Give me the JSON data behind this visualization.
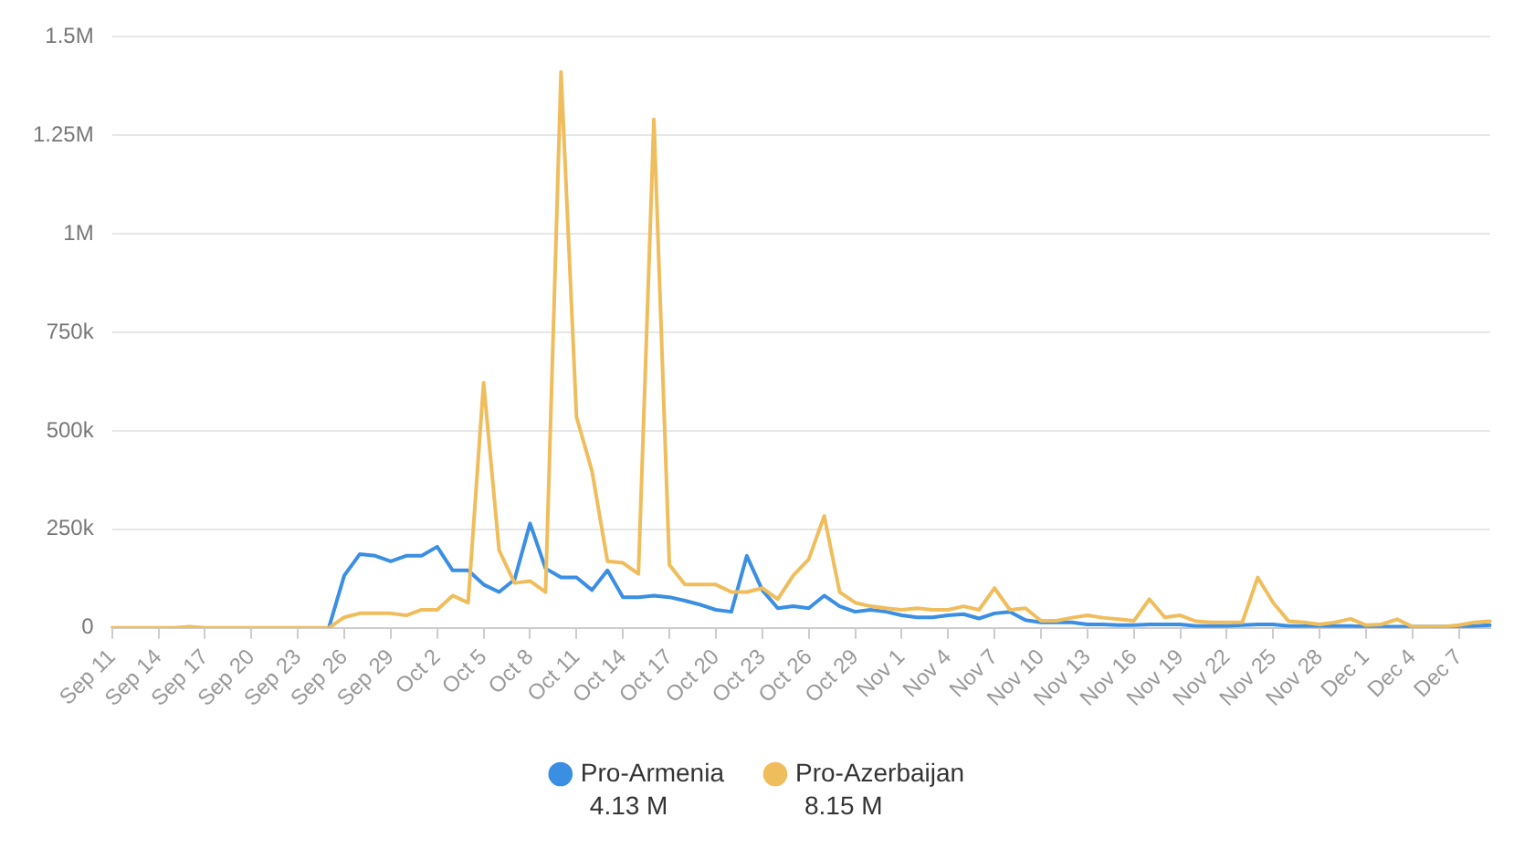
{
  "chart_data": {
    "type": "line",
    "categories": [
      "Sep 11",
      null,
      null,
      "Sep 14",
      null,
      null,
      "Sep 17",
      null,
      null,
      "Sep 20",
      null,
      null,
      "Sep 23",
      null,
      null,
      "Sep 26",
      null,
      null,
      "Sep 29",
      null,
      null,
      "Oct 2",
      null,
      null,
      "Oct 5",
      null,
      null,
      "Oct 8",
      null,
      null,
      "Oct 11",
      null,
      null,
      "Oct 14",
      null,
      null,
      "Oct 17",
      null,
      null,
      "Oct 20",
      null,
      null,
      "Oct 23",
      null,
      null,
      "Oct 26",
      null,
      null,
      "Oct 29",
      null,
      null,
      "Nov 1",
      null,
      null,
      "Nov 4",
      null,
      null,
      "Nov 7",
      null,
      null,
      "Nov 10",
      null,
      null,
      "Nov 13",
      null,
      null,
      "Nov 16",
      null,
      null,
      "Nov 19",
      null,
      null,
      "Nov 22",
      null,
      null,
      "Nov 25",
      null,
      null,
      "Nov 28",
      null,
      null,
      "Dec 1",
      null,
      null,
      "Dec 4",
      null,
      null,
      "Dec 7",
      null,
      null
    ],
    "series": [
      {
        "name": "Pro-Armenia",
        "color": "#3b8fe3",
        "values": [
          null,
          null,
          null,
          null,
          null,
          null,
          null,
          null,
          null,
          null,
          null,
          null,
          null,
          null,
          0,
          133000,
          187000,
          183000,
          169000,
          183000,
          183000,
          206000,
          146000,
          146000,
          110000,
          91000,
          123000,
          265000,
          151000,
          128000,
          128000,
          96000,
          146000,
          78000,
          78000,
          82000,
          78000,
          69000,
          59000,
          46000,
          41000,
          183000,
          96000,
          50000,
          55000,
          50000,
          82000,
          55000,
          41000,
          46000,
          41000,
          32000,
          27000,
          27000,
          32000,
          35000,
          24000,
          37000,
          41000,
          20000,
          14000,
          14000,
          14000,
          9000,
          9000,
          7000,
          7000,
          9000,
          9000,
          9000,
          5000,
          5000,
          5000,
          7000,
          9000,
          9000,
          5000,
          5000,
          5000,
          5000,
          5000,
          3000,
          3000,
          3000,
          3000,
          3000,
          3000,
          3000,
          5000,
          7000
        ]
      },
      {
        "name": "Pro-Azerbaijan",
        "color": "#f0bd5c",
        "values": [
          0,
          0,
          0,
          0,
          0,
          3000,
          0,
          0,
          0,
          0,
          0,
          0,
          0,
          0,
          0,
          27000,
          37000,
          37000,
          37000,
          32000,
          46000,
          46000,
          82000,
          64000,
          622000,
          197000,
          114000,
          119000,
          91000,
          1410000,
          535000,
          398000,
          169000,
          165000,
          137000,
          1290000,
          160000,
          110000,
          110000,
          110000,
          91000,
          91000,
          101000,
          73000,
          133000,
          174000,
          284000,
          91000,
          64000,
          55000,
          50000,
          46000,
          50000,
          46000,
          46000,
          55000,
          46000,
          101000,
          46000,
          50000,
          18000,
          18000,
          26000,
          32000,
          26000,
          22000,
          18000,
          73000,
          27000,
          32000,
          17000,
          14000,
          14000,
          14000,
          128000,
          64000,
          17000,
          14000,
          9000,
          14000,
          23000,
          7000,
          9000,
          22000,
          3000,
          3000,
          3000,
          7000,
          14000,
          17000
        ]
      }
    ],
    "ylim": [
      0,
      1500000
    ],
    "yticks": [
      0,
      {
        "value": 250000,
        "label": "250k"
      },
      {
        "value": 500000,
        "label": "500k"
      },
      {
        "value": 750000,
        "label": "750k"
      },
      {
        "value": 1000000,
        "label": "1M"
      },
      {
        "value": 1250000,
        "label": "1.25M"
      },
      {
        "value": 1500000,
        "label": "1.5M"
      }
    ],
    "grid": "y",
    "legend": "bottom",
    "marker": "none",
    "line_style": "solid",
    "annotations": [
      "4.13 M",
      "8.15 M"
    ]
  }
}
